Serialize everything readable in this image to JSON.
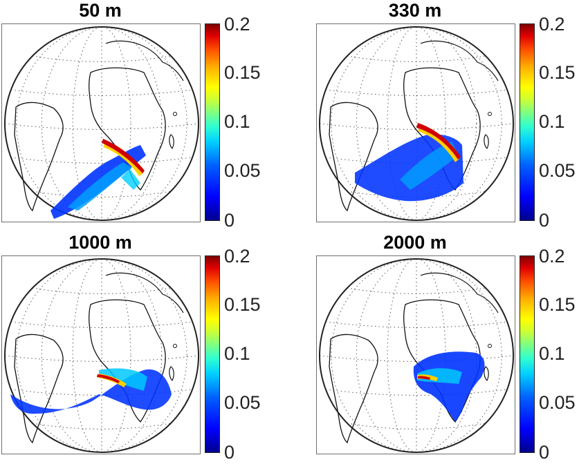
{
  "colors": {
    "frame": "#6e6e6e",
    "coast": "#111111",
    "grid": "#555555",
    "plume_low": "#0033ff",
    "plume_mid": "#00c8ff",
    "plume_hi": "#ffd000",
    "plume_top": "#c00000"
  },
  "chart_data": [
    {
      "type": "heatmap",
      "title": "50 m",
      "colorbar": {
        "ticks": [
          "0",
          "0.05",
          "0.1",
          "0.15",
          "0.2"
        ],
        "range": [
          0,
          0.2
        ],
        "colormap": "jet"
      }
    },
    {
      "type": "heatmap",
      "title": "330 m",
      "colorbar": {
        "ticks": [
          "0",
          "0.05",
          "0.1",
          "0.15",
          "0.2"
        ],
        "range": [
          0,
          0.2
        ],
        "colormap": "jet"
      }
    },
    {
      "type": "heatmap",
      "title": "1000 m",
      "colorbar": {
        "ticks": [
          "0",
          "0.05",
          "0.1",
          "0.15",
          "0.2"
        ],
        "range": [
          0,
          0.2
        ],
        "colormap": "jet"
      }
    },
    {
      "type": "heatmap",
      "title": "2000 m",
      "colorbar": {
        "ticks": [
          "0",
          "0.05",
          "0.1",
          "0.15",
          "0.2"
        ],
        "range": [
          0,
          0.2
        ],
        "colormap": "jet"
      }
    }
  ]
}
